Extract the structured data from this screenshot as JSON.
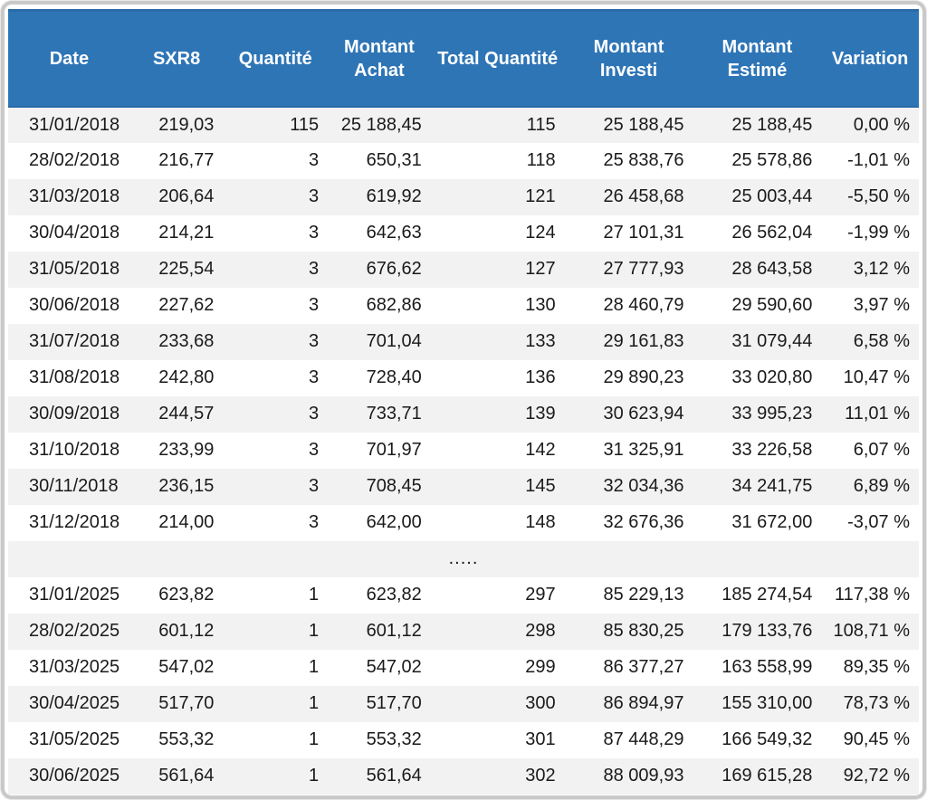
{
  "colors": {
    "header_bg": "#2E75B6",
    "header_text": "#FFFFFF",
    "row_stripe": "#F2F2F2",
    "row_plain": "#FFFFFF",
    "body_text": "#1A1A1A",
    "frame_border": "#C9C9C9"
  },
  "chart_data": {
    "type": "table",
    "title": "",
    "columns": [
      "Date",
      "SXR8",
      "Quantité",
      "Montant Achat",
      "Total Quantité",
      "Montant Investi",
      "Montant Estimé",
      "Variation"
    ],
    "column_align": [
      "left",
      "right",
      "right",
      "right",
      "right",
      "right",
      "right",
      "right"
    ],
    "ellipsis_label": ".....",
    "rows": [
      [
        "31/01/2018",
        "219,03",
        "115",
        "25 188,45",
        "115",
        "25 188,45",
        "25 188,45",
        "0,00 %"
      ],
      [
        "28/02/2018",
        "216,77",
        "3",
        "650,31",
        "118",
        "25 838,76",
        "25 578,86",
        "-1,01 %"
      ],
      [
        "31/03/2018",
        "206,64",
        "3",
        "619,92",
        "121",
        "26 458,68",
        "25 003,44",
        "-5,50 %"
      ],
      [
        "30/04/2018",
        "214,21",
        "3",
        "642,63",
        "124",
        "27 101,31",
        "26 562,04",
        "-1,99 %"
      ],
      [
        "31/05/2018",
        "225,54",
        "3",
        "676,62",
        "127",
        "27 777,93",
        "28 643,58",
        "3,12 %"
      ],
      [
        "30/06/2018",
        "227,62",
        "3",
        "682,86",
        "130",
        "28 460,79",
        "29 590,60",
        "3,97 %"
      ],
      [
        "31/07/2018",
        "233,68",
        "3",
        "701,04",
        "133",
        "29 161,83",
        "31 079,44",
        "6,58 %"
      ],
      [
        "31/08/2018",
        "242,80",
        "3",
        "728,40",
        "136",
        "29 890,23",
        "33 020,80",
        "10,47 %"
      ],
      [
        "30/09/2018",
        "244,57",
        "3",
        "733,71",
        "139",
        "30 623,94",
        "33 995,23",
        "11,01 %"
      ],
      [
        "31/10/2018",
        "233,99",
        "3",
        "701,97",
        "142",
        "31 325,91",
        "33 226,58",
        "6,07 %"
      ],
      [
        "30/11/2018",
        "236,15",
        "3",
        "708,45",
        "145",
        "32 034,36",
        "34 241,75",
        "6,89 %"
      ],
      [
        "31/12/2018",
        "214,00",
        "3",
        "642,00",
        "148",
        "32 676,36",
        "31 672,00",
        "-3,07 %"
      ],
      "ELLIPSIS",
      [
        "31/01/2025",
        "623,82",
        "1",
        "623,82",
        "297",
        "85 229,13",
        "185 274,54",
        "117,38 %"
      ],
      [
        "28/02/2025",
        "601,12",
        "1",
        "601,12",
        "298",
        "85 830,25",
        "179 133,76",
        "108,71 %"
      ],
      [
        "31/03/2025",
        "547,02",
        "1",
        "547,02",
        "299",
        "86 377,27",
        "163 558,99",
        "89,35 %"
      ],
      [
        "30/04/2025",
        "517,70",
        "1",
        "517,70",
        "300",
        "86 894,97",
        "155 310,00",
        "78,73 %"
      ],
      [
        "31/05/2025",
        "553,32",
        "1",
        "553,32",
        "301",
        "87 448,29",
        "166 549,32",
        "90,45 %"
      ],
      [
        "30/06/2025",
        "561,64",
        "1",
        "561,64",
        "302",
        "88 009,93",
        "169 615,28",
        "92,72 %"
      ]
    ]
  }
}
